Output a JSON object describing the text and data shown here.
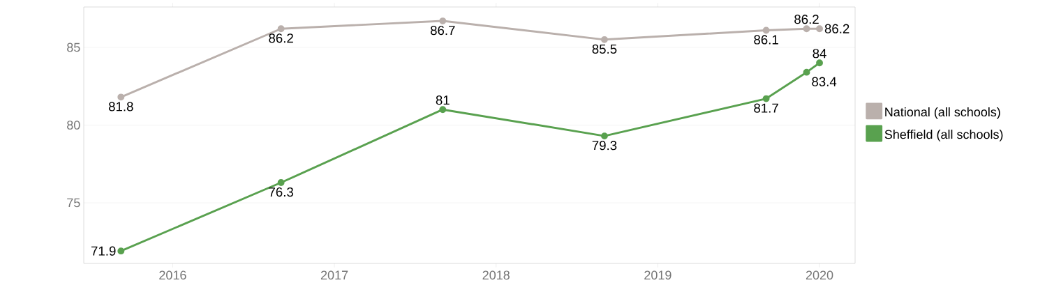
{
  "chart_data": {
    "type": "line",
    "x": [
      2015.68,
      2016.67,
      2017.67,
      2018.67,
      2019.67,
      2019.92,
      2020.0
    ],
    "series": [
      {
        "name": "National (all schools)",
        "color": "#bab0ac",
        "values": [
          81.8,
          86.2,
          86.7,
          85.5,
          86.1,
          86.2,
          86.2
        ]
      },
      {
        "name": "Sheffield (all schools)",
        "color": "#59a14f",
        "values": [
          71.9,
          76.3,
          81,
          79.3,
          81.7,
          83.4,
          84
        ]
      }
    ],
    "xlim": [
      2015.45,
      2020.22
    ],
    "ylim": [
      71.1,
      87.6
    ],
    "xticks": [
      2016,
      2017,
      2018,
      2019,
      2020
    ],
    "yticks": [
      75,
      80,
      85
    ],
    "grid": "y",
    "legend": "right",
    "marker": "circle",
    "line_style": "solid",
    "data_labels": true
  }
}
